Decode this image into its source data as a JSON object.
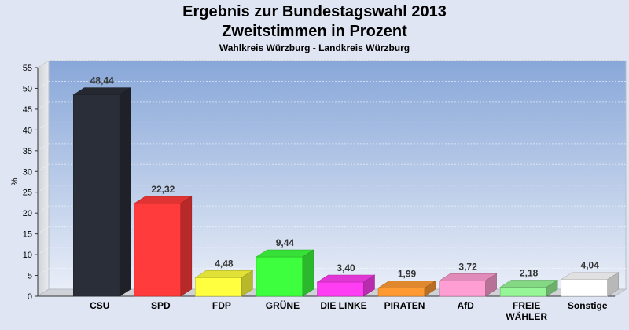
{
  "chart_data": {
    "type": "bar",
    "title": "Ergebnis zur Bundestagswahl 2013",
    "title_line2": "Zweitstimmen in Prozent",
    "subtitle": "Wahlkreis Würzburg - Landkreis Würzburg",
    "ylabel": "%",
    "xlabel": "",
    "ylim": [
      0,
      55
    ],
    "yticks": [
      0,
      5,
      10,
      15,
      20,
      25,
      30,
      35,
      40,
      45,
      50,
      55
    ],
    "grid": true,
    "legend": "none",
    "categories": [
      [
        "CSU"
      ],
      [
        "SPD"
      ],
      [
        "FDP"
      ],
      [
        "GRÜNE"
      ],
      [
        "DIE LINKE"
      ],
      [
        "PIRATEN"
      ],
      [
        "AfD"
      ],
      [
        "FREIE",
        "WÄHLER"
      ],
      [
        "Sonstige"
      ]
    ],
    "values": [
      48.44,
      22.32,
      4.48,
      9.44,
      3.4,
      1.99,
      3.72,
      2.18,
      4.04
    ],
    "value_labels": [
      "48,44",
      "22,32",
      "4,48",
      "9,44",
      "3,40",
      "1,99",
      "3,72",
      "2,18",
      "4,04"
    ],
    "colors": [
      "#2a2e38",
      "#ff3b3b",
      "#ffff3f",
      "#3dff3d",
      "#ff3df2",
      "#ff9a33",
      "#ff9ed2",
      "#96f596",
      "#ffffff"
    ]
  }
}
